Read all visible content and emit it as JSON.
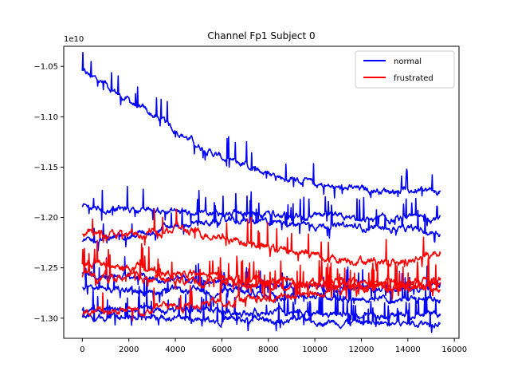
{
  "chart_data": {
    "type": "line",
    "title": "Channel Fp1 Subject 0",
    "xlabel": "",
    "ylabel": "",
    "y_offset_label": "1e10",
    "xlim": [
      -800,
      16200
    ],
    "ylim": [
      -13.2,
      -10.3
    ],
    "x_ticks": [
      0,
      2000,
      4000,
      6000,
      8000,
      10000,
      12000,
      14000,
      16000
    ],
    "x_tick_labels": [
      "0",
      "2000",
      "4000",
      "6000",
      "8000",
      "10000",
      "12000",
      "14000",
      "16000"
    ],
    "y_ticks": [
      -10.5,
      -11.0,
      -11.5,
      -12.0,
      -12.5,
      -13.0
    ],
    "y_tick_labels": [
      "−1.05",
      "−1.10",
      "−1.15",
      "−1.20",
      "−1.25",
      "−1.30"
    ],
    "y_tick_scale": 1000000000.0,
    "grid": false,
    "legend": {
      "placement": "top-right",
      "entries": [
        {
          "name": "normal",
          "color": "#0000ff"
        },
        {
          "name": "frustrated",
          "color": "#ff0000"
        }
      ]
    },
    "x_range_of_series": [
      0,
      15400
    ],
    "series": [
      {
        "name": "normal",
        "color": "#0000ff",
        "x": [
          0,
          1000,
          2000,
          3000,
          4000,
          5000,
          6000,
          7000,
          8000,
          9000,
          10000,
          11000,
          12000,
          13000,
          14000,
          15400
        ],
        "values": [
          -10.55,
          -10.68,
          -10.84,
          -10.98,
          -11.13,
          -11.28,
          -11.41,
          -11.48,
          -11.57,
          -11.62,
          -11.68,
          -11.71,
          -11.72,
          -11.73,
          -11.73,
          -11.74
        ]
      },
      {
        "name": "normal",
        "color": "#0000ff",
        "x": [
          0,
          2000,
          4000,
          6000,
          8000,
          10000,
          12000,
          14000,
          15400
        ],
        "values": [
          -11.9,
          -11.92,
          -11.94,
          -11.96,
          -11.98,
          -12.0,
          -12.02,
          -12.03,
          -12.0
        ]
      },
      {
        "name": "normal",
        "color": "#0000ff",
        "x": [
          0,
          2000,
          4000,
          6000,
          8000,
          10000,
          12000,
          14000,
          15400
        ],
        "values": [
          -12.25,
          -12.18,
          -12.08,
          -12.04,
          -12.05,
          -12.07,
          -12.1,
          -12.12,
          -12.15
        ]
      },
      {
        "name": "normal",
        "color": "#0000ff",
        "x": [
          0,
          2000,
          4000,
          6000,
          8000,
          10000,
          12000,
          14000,
          15400
        ],
        "values": [
          -12.55,
          -12.58,
          -12.62,
          -12.66,
          -12.68,
          -12.69,
          -12.7,
          -12.7,
          -12.68
        ]
      },
      {
        "name": "normal",
        "color": "#0000ff",
        "x": [
          0,
          2000,
          4000,
          6000,
          8000,
          10000,
          12000,
          14000,
          15400
        ],
        "values": [
          -12.7,
          -12.72,
          -12.73,
          -12.74,
          -12.76,
          -12.78,
          -12.8,
          -12.82,
          -12.8
        ]
      },
      {
        "name": "normal",
        "color": "#0000ff",
        "x": [
          0,
          2000,
          4000,
          6000,
          8000,
          10000,
          12000,
          14000,
          15400
        ],
        "values": [
          -12.92,
          -12.92,
          -12.93,
          -12.94,
          -12.94,
          -12.95,
          -12.96,
          -12.97,
          -12.96
        ]
      },
      {
        "name": "normal",
        "color": "#0000ff",
        "x": [
          0,
          2000,
          4000,
          6000,
          8000,
          10000,
          12000,
          14000,
          15400
        ],
        "values": [
          -12.98,
          -12.99,
          -13.0,
          -13.01,
          -13.02,
          -13.03,
          -13.04,
          -13.05,
          -13.03
        ]
      },
      {
        "name": "frustrated",
        "color": "#ff0000",
        "x": [
          0,
          2000,
          4000,
          6000,
          8000,
          10000,
          12000,
          14000,
          15400
        ],
        "values": [
          -12.15,
          -12.18,
          -12.12,
          -12.18,
          -12.3,
          -12.38,
          -12.42,
          -12.45,
          -12.33
        ]
      },
      {
        "name": "frustrated",
        "color": "#ff0000",
        "x": [
          0,
          2000,
          4000,
          6000,
          8000,
          10000,
          12000,
          14000,
          15400
        ],
        "values": [
          -12.45,
          -12.5,
          -12.55,
          -12.6,
          -12.63,
          -12.65,
          -12.66,
          -12.65,
          -12.62
        ]
      },
      {
        "name": "frustrated",
        "color": "#ff0000",
        "x": [
          0,
          2000,
          4000,
          6000,
          8000,
          10000,
          12000,
          14000,
          15400
        ],
        "values": [
          -12.58,
          -12.6,
          -12.62,
          -12.64,
          -12.66,
          -12.68,
          -12.68,
          -12.67,
          -12.66
        ]
      },
      {
        "name": "frustrated",
        "color": "#ff0000",
        "x": [
          0,
          2000,
          4000,
          6000,
          8000,
          10000,
          12000,
          14000,
          15400
        ],
        "values": [
          -12.95,
          -12.92,
          -12.88,
          -12.84,
          -12.8,
          -12.75,
          -12.7,
          -12.68,
          -12.7
        ]
      }
    ]
  }
}
